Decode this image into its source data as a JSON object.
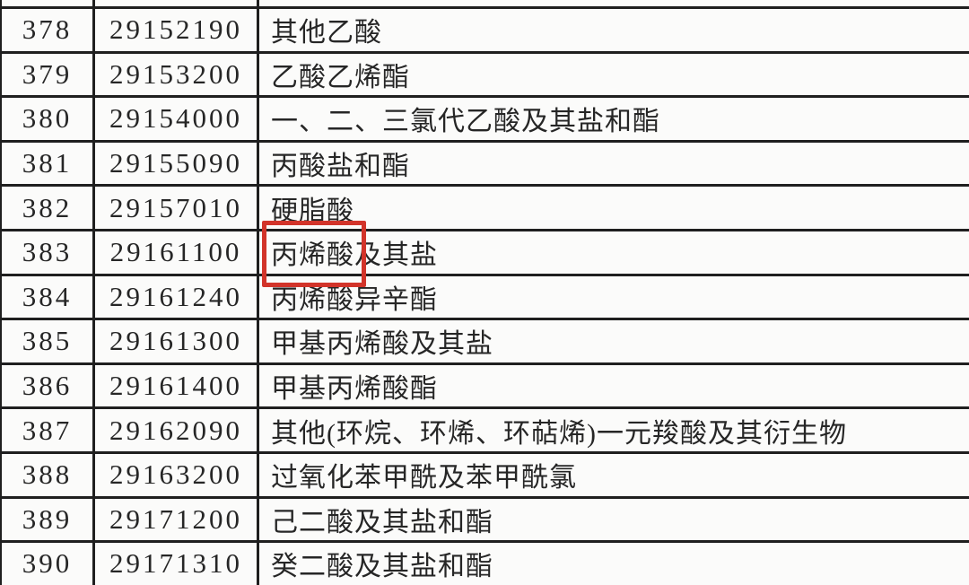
{
  "table": {
    "rows": [
      {
        "seq": "378",
        "code": "29152190",
        "desc": "其他乙酸"
      },
      {
        "seq": "379",
        "code": "29153200",
        "desc": "乙酸乙烯酯"
      },
      {
        "seq": "380",
        "code": "29154000",
        "desc": "一、二、三氯代乙酸及其盐和酯"
      },
      {
        "seq": "381",
        "code": "29155090",
        "desc": "丙酸盐和酯"
      },
      {
        "seq": "382",
        "code": "29157010",
        "desc": "硬脂酸"
      },
      {
        "seq": "383",
        "code": "29161100",
        "desc": "丙烯酸及其盐",
        "boxed_prefix": "丙烯酸"
      },
      {
        "seq": "384",
        "code": "29161240",
        "desc": "丙烯酸异辛酯"
      },
      {
        "seq": "385",
        "code": "29161300",
        "desc": "甲基丙烯酸及其盐"
      },
      {
        "seq": "386",
        "code": "29161400",
        "desc": "甲基丙烯酸酯"
      },
      {
        "seq": "387",
        "code": "29162090",
        "desc": "其他(环烷、环烯、环萜烯)一元羧酸及其衍生物"
      },
      {
        "seq": "388",
        "code": "29163200",
        "desc": "过氧化苯甲酰及苯甲酰氯"
      },
      {
        "seq": "389",
        "code": "29171200",
        "desc": "己二酸及其盐和酯"
      },
      {
        "seq": "390",
        "code": "29171310",
        "desc": "癸二酸及其盐和酯"
      }
    ],
    "annotation": {
      "boxed_text": "丙烯酸",
      "box_color": "#d2342a"
    }
  }
}
